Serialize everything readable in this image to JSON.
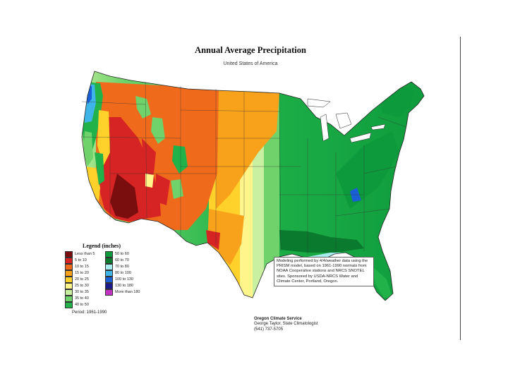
{
  "map": {
    "title": "Annual Average Precipitation",
    "subtitle": "United States of America"
  },
  "legend": {
    "title": "Legend (inches)",
    "items": [
      {
        "label": "Less than 5",
        "color": "#7a0d0d"
      },
      {
        "label": "5 to 10",
        "color": "#d62424"
      },
      {
        "label": "10 to 15",
        "color": "#f06a1c"
      },
      {
        "label": "15 to 20",
        "color": "#f7a21a"
      },
      {
        "label": "20 to 25",
        "color": "#ffd12a"
      },
      {
        "label": "25 to 30",
        "color": "#fff58a"
      },
      {
        "label": "30 to 35",
        "color": "#c8f0a0"
      },
      {
        "label": "35 to 40",
        "color": "#6fd26a"
      },
      {
        "label": "40 to 50",
        "color": "#21b34a"
      },
      {
        "label": "50 to 60",
        "color": "#0d9a3c"
      },
      {
        "label": "60 to 70",
        "color": "#0a7a2e"
      },
      {
        "label": "70 to 80",
        "color": "#a8ecf0"
      },
      {
        "label": "80 to 100",
        "color": "#3fb4e6"
      },
      {
        "label": "100 to 130",
        "color": "#1a5fd6"
      },
      {
        "label": "130 to 180",
        "color": "#1a1a8a"
      },
      {
        "label": "More than 180",
        "color": "#c033c0"
      }
    ],
    "period": "Period: 1961-1990"
  },
  "credit": {
    "text": "Modeling performed by 4/4/weather data using the PRISM model, based on 1961-1990 normals from NOAA Cooperative stations and NRCS SNOTEL sites. Sponsored by USDA-NRCS Water and Climate Center, Portland, Oregon."
  },
  "service": {
    "name": "Oregon Climate Service",
    "person": "George Taylor, State Climatologist",
    "phone": "(541) 737-5705"
  }
}
